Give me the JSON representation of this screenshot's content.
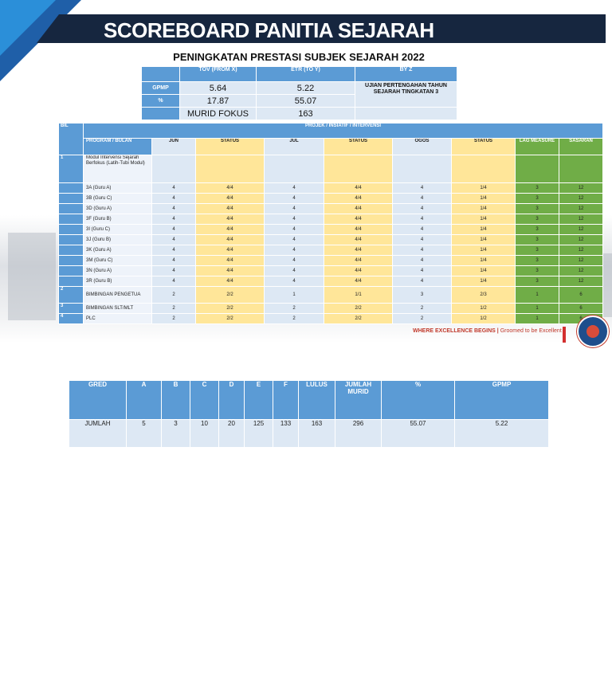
{
  "banner": {
    "title": "SCOREBOARD PANITIA SEJARAH"
  },
  "subtitle": "PENINGKATAN PRESTASI SUBJEK SEJARAH 2022",
  "summary": {
    "headers": [
      "TOV (FROM X)",
      "ETR (TO Y)",
      "BY Z"
    ],
    "rows": [
      {
        "label": "GPMP",
        "tov": "5.64",
        "etr": "5.22"
      },
      {
        "label": "%",
        "tov": "17.87",
        "etr": "55.07"
      }
    ],
    "by_z": "UJIAN PERTENGAHAN TAHUN SEJARAH TINGKATAN 3",
    "murid_fokus_label": "MURID FOKUS",
    "murid_fokus_value": "163"
  },
  "program_table": {
    "bil_header": "BIL",
    "group_header": "PROJEK / INSIATIF / INTERVENSI",
    "columns": [
      "PROGRAM / BULAN",
      "JUN",
      "STATUS",
      "JUL",
      "STATUS",
      "OGOS",
      "STATUS",
      "LAG MEASURE",
      "SASARAN"
    ],
    "item1": {
      "bil": "1",
      "program": "Modul Intervensi Sejarah Berfokus (Latih-Tubi Modul)"
    },
    "classes": [
      {
        "name": "3A (Guru A)",
        "jun": "4",
        "s1": "4/4",
        "jul": "4",
        "s2": "4/4",
        "ogos": "4",
        "s3": "1/4",
        "lag": "3",
        "sasaran": "12"
      },
      {
        "name": "3B (Guru C)",
        "jun": "4",
        "s1": "4/4",
        "jul": "4",
        "s2": "4/4",
        "ogos": "4",
        "s3": "1/4",
        "lag": "3",
        "sasaran": "12"
      },
      {
        "name": "3D (Guru A)",
        "jun": "4",
        "s1": "4/4",
        "jul": "4",
        "s2": "4/4",
        "ogos": "4",
        "s3": "1/4",
        "lag": "3",
        "sasaran": "12"
      },
      {
        "name": "3F (Guru B)",
        "jun": "4",
        "s1": "4/4",
        "jul": "4",
        "s2": "4/4",
        "ogos": "4",
        "s3": "1/4",
        "lag": "3",
        "sasaran": "12"
      },
      {
        "name": "3I (Guru C)",
        "jun": "4",
        "s1": "4/4",
        "jul": "4",
        "s2": "4/4",
        "ogos": "4",
        "s3": "1/4",
        "lag": "3",
        "sasaran": "12"
      },
      {
        "name": "3J (Guru B)",
        "jun": "4",
        "s1": "4/4",
        "jul": "4",
        "s2": "4/4",
        "ogos": "4",
        "s3": "1/4",
        "lag": "3",
        "sasaran": "12"
      },
      {
        "name": "3K (Guru A)",
        "jun": "4",
        "s1": "4/4",
        "jul": "4",
        "s2": "4/4",
        "ogos": "4",
        "s3": "1/4",
        "lag": "3",
        "sasaran": "12"
      },
      {
        "name": "3M (Guru C)",
        "jun": "4",
        "s1": "4/4",
        "jul": "4",
        "s2": "4/4",
        "ogos": "4",
        "s3": "1/4",
        "lag": "3",
        "sasaran": "12"
      },
      {
        "name": "3N (Guru A)",
        "jun": "4",
        "s1": "4/4",
        "jul": "4",
        "s2": "4/4",
        "ogos": "4",
        "s3": "1/4",
        "lag": "3",
        "sasaran": "12"
      },
      {
        "name": "3R (Guru B)",
        "jun": "4",
        "s1": "4/4",
        "jul": "4",
        "s2": "4/4",
        "ogos": "4",
        "s3": "1/4",
        "lag": "3",
        "sasaran": "12"
      }
    ],
    "others": [
      {
        "bil": "2",
        "name": "BIMBINGAN PENGETUA",
        "jun": "2",
        "s1": "2/2",
        "jul": "1",
        "s2": "1/1",
        "ogos": "3",
        "s3": "2/3",
        "lag": "1",
        "sasaran": "6"
      },
      {
        "bil": "3",
        "name": "BIMBINGAN SLT/MLT",
        "jun": "2",
        "s1": "2/2",
        "jul": "2",
        "s2": "2/2",
        "ogos": "2",
        "s3": "1/2",
        "lag": "1",
        "sasaran": "6"
      },
      {
        "bil": "4",
        "name": "PLC",
        "jun": "2",
        "s1": "2/2",
        "jul": "2",
        "s2": "2/2",
        "ogos": "2",
        "s3": "1/2",
        "lag": "1",
        "sasaran": "6"
      }
    ]
  },
  "tagline": {
    "main": "WHERE EXCELLENCE BEGINS",
    "sub": "Groomed to be Excellent"
  },
  "grade_table": {
    "headers": [
      "GRED",
      "A",
      "B",
      "C",
      "D",
      "E",
      "F",
      "LULUS",
      "JUMLAH MURID",
      "%",
      "GPMP"
    ],
    "row": [
      "JUMLAH",
      "5",
      "3",
      "10",
      "20",
      "125",
      "133",
      "163",
      "296",
      "55.07",
      "5.22"
    ]
  },
  "colors": {
    "banner": "#16263f",
    "header_blue": "#5b9bd5",
    "status_yellow": "#ffe699",
    "lag_green": "#70ad47",
    "cell_light": "#dde8f4"
  }
}
